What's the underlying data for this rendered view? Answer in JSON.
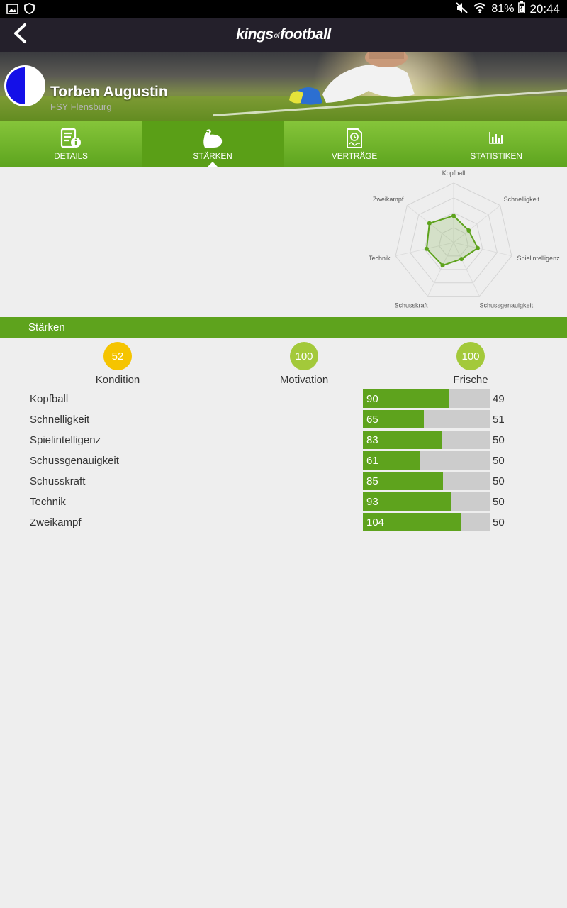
{
  "statusbar": {
    "battery": "81%",
    "time": "20:44",
    "icons": [
      "image-icon",
      "shield-icon",
      "mute-icon",
      "wifi-icon",
      "battery-icon"
    ]
  },
  "appbar": {
    "logo_left": "kings",
    "logo_mid": "of",
    "logo_right": "football",
    "back_icon": "chevron-left-icon"
  },
  "player": {
    "name": "Torben Augustin",
    "club": "FSY Flensburg",
    "colors": {
      "left": "#1410e8",
      "right": "#ffffff"
    }
  },
  "tabs": [
    {
      "label": "DETAILS",
      "icon": "document-info-icon",
      "active": false
    },
    {
      "label": "STÄRKEN",
      "icon": "flexed-arm-icon",
      "active": true
    },
    {
      "label": "VERTRÄGE",
      "icon": "contract-icon",
      "active": false
    },
    {
      "label": "STATISTIKEN",
      "icon": "bar-chart-icon",
      "active": false
    }
  ],
  "chart_data": {
    "type": "radar",
    "axes": [
      "Kopfball",
      "Schnelligkeit",
      "Spielintelligenz",
      "Schussgenauigkeit",
      "Schusskraft",
      "Technik",
      "Zweikampf"
    ],
    "values": [
      90,
      65,
      83,
      61,
      85,
      93,
      104
    ],
    "range": [
      0,
      200
    ],
    "rings": 4,
    "color": "#5ea31d"
  },
  "section": {
    "title": "Stärken"
  },
  "summary": [
    {
      "label": "Kondition",
      "value": "52",
      "color": "#f5c400"
    },
    {
      "label": "Motivation",
      "value": "100",
      "color": "#a3c93a"
    },
    {
      "label": "Frische",
      "value": "100",
      "color": "#a3c93a"
    }
  ],
  "strengths": [
    {
      "name": "Kopfball",
      "value": "90",
      "potential": "49",
      "fill": 0.67
    },
    {
      "name": "Schnelligkeit",
      "value": "65",
      "potential": "51",
      "fill": 0.48
    },
    {
      "name": "Spielintelligenz",
      "value": "83",
      "potential": "50",
      "fill": 0.62
    },
    {
      "name": "Schussgenauigkeit",
      "value": "61",
      "potential": "50",
      "fill": 0.45
    },
    {
      "name": "Schusskraft",
      "value": "85",
      "potential": "50",
      "fill": 0.63
    },
    {
      "name": "Technik",
      "value": "93",
      "potential": "50",
      "fill": 0.69
    },
    {
      "name": "Zweikampf",
      "value": "104",
      "potential": "50",
      "fill": 0.77
    }
  ],
  "colors": {
    "accent": "#5ea31d",
    "appbar": "#24202b",
    "bar_bg": "#cccccc"
  }
}
